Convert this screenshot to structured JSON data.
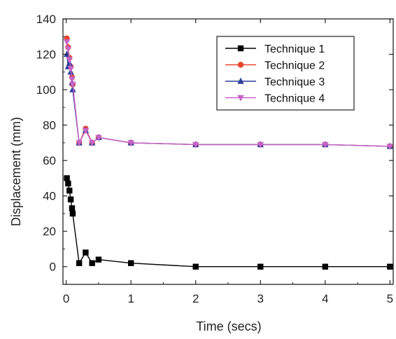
{
  "chart_data": {
    "type": "line",
    "title": "",
    "xlabel": "Time (secs)",
    "ylabel": "Displacement (mm)",
    "xlim": [
      -0.05,
      5.05
    ],
    "ylim": [
      -10,
      140
    ],
    "xticks": [
      0,
      1,
      2,
      3,
      4,
      5
    ],
    "yticks": [
      0,
      20,
      40,
      60,
      80,
      100,
      120,
      140
    ],
    "grid": false,
    "legend_position": "top-right",
    "series": [
      {
        "name": "Technique 1",
        "color": "#000000",
        "marker": "square",
        "x": [
          0.01,
          0.03,
          0.05,
          0.07,
          0.09,
          0.1,
          0.2,
          0.3,
          0.4,
          0.5,
          1,
          2,
          3,
          4,
          5
        ],
        "y": [
          50,
          47,
          43,
          38,
          33,
          30,
          2,
          8,
          2,
          4,
          2,
          0,
          0,
          0,
          0
        ]
      },
      {
        "name": "Technique 2",
        "color": "#e8452c",
        "marker": "circle",
        "x": [
          0.01,
          0.03,
          0.05,
          0.07,
          0.09,
          0.1,
          0.2,
          0.3,
          0.4,
          0.5,
          1,
          2,
          3,
          4,
          5
        ],
        "y": [
          129,
          124,
          118,
          113,
          107,
          103,
          70,
          78,
          70,
          73,
          70,
          69,
          69,
          69,
          68
        ]
      },
      {
        "name": "Technique 3",
        "color": "#2a3f9a",
        "marker": "triangle-up",
        "x": [
          0.01,
          0.03,
          0.05,
          0.07,
          0.09,
          0.1,
          0.2,
          0.3,
          0.4,
          0.5,
          1,
          2,
          3,
          4,
          5
        ],
        "y": [
          120,
          113,
          115,
          110,
          104,
          100,
          70,
          77,
          70,
          73,
          70,
          69,
          69,
          69,
          68
        ]
      },
      {
        "name": "Technique 4",
        "color": "#c864c8",
        "marker": "triangle-down",
        "x": [
          0.01,
          0.03,
          0.05,
          0.07,
          0.09,
          0.1,
          0.2,
          0.3,
          0.4,
          0.5,
          1,
          2,
          3,
          4,
          5
        ],
        "y": [
          127,
          123,
          117,
          112,
          106,
          103,
          70,
          77,
          70,
          73,
          70,
          69,
          69,
          69,
          68
        ]
      }
    ]
  }
}
